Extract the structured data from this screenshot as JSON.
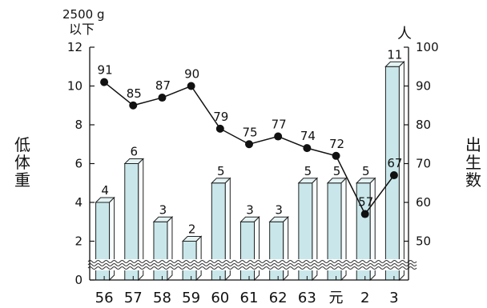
{
  "chart_data": {
    "type": "bar",
    "categories": [
      "56",
      "57",
      "58",
      "59",
      "60",
      "61",
      "62",
      "63",
      "元",
      "2",
      "3"
    ],
    "series": [
      {
        "values": [
          4,
          6,
          3,
          2,
          5,
          3,
          3,
          5,
          5,
          5,
          11
        ],
        "color": "#c9e7ea",
        "axis": "left"
      },
      {
        "values": [
          91,
          85,
          87,
          90,
          79,
          75,
          77,
          74,
          72,
          57,
          67
        ],
        "color": "#111111",
        "axis": "right",
        "type": "line"
      }
    ],
    "left_axis": {
      "title_line1": "2500 g",
      "title_line2": "以下",
      "side_label": "低体重",
      "ylim": [
        0,
        12
      ],
      "ticks": [
        "0",
        "2",
        "4",
        "6",
        "8",
        "10",
        "12"
      ]
    },
    "right_axis": {
      "title": "人",
      "side_label": "出生数",
      "ylim": [
        40,
        100
      ],
      "ticks": [
        "50",
        "60",
        "70",
        "80",
        "90",
        "100"
      ]
    },
    "axis_break": true,
    "grid": false
  }
}
